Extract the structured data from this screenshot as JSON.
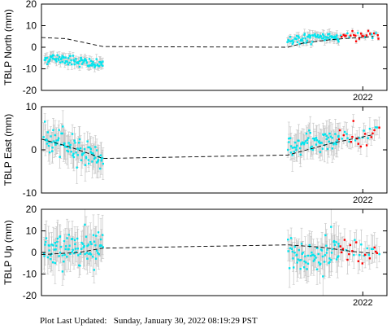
{
  "chart_data": [
    {
      "type": "scatter",
      "ylabel": "TBLP North (mm)",
      "ylim": [
        -20,
        20
      ],
      "yticks": [
        20,
        10,
        0,
        -10,
        -20
      ],
      "xlim": [
        2016.0,
        2022.45
      ],
      "xticks": [
        {
          "value": 2022.0,
          "label": "2022"
        }
      ],
      "grid": false,
      "segments": [
        {
          "x_start": 2016.05,
          "x_end": 2017.15,
          "mean": [
            -5.5,
            -5.0,
            -6.0,
            -7.5,
            -8.5
          ],
          "sd": 1.2,
          "err": 1.8,
          "color": "#00e5ee",
          "n": 90
        },
        {
          "x_start": 2020.6,
          "x_end": 2021.55,
          "mean": [
            3.5,
            3.8,
            4.2,
            4.6,
            5.2
          ],
          "sd": 1.2,
          "err": 1.8,
          "color": "#00e5ee",
          "n": 70
        },
        {
          "x_start": 2021.55,
          "x_end": 2022.3,
          "mean": [
            5.0,
            5.3,
            5.6,
            5.8,
            6.0
          ],
          "sd": 0.8,
          "err": 1.0,
          "color": "#ff0000",
          "n": 28,
          "red_prob": 0.55
        }
      ],
      "model": [
        [
          2016.0,
          4.5
        ],
        [
          2016.45,
          4.0
        ],
        [
          2017.15,
          0.3
        ],
        [
          2020.6,
          0.0
        ],
        [
          2020.9,
          2.0
        ],
        [
          2021.4,
          3.5
        ],
        [
          2022.2,
          5.0
        ]
      ]
    },
    {
      "type": "scatter",
      "ylabel": "TBLP East (mm)",
      "ylim": [
        -10,
        10
      ],
      "yticks": [
        10,
        0,
        -10
      ],
      "xlim": [
        2016.0,
        2022.45
      ],
      "xticks": [
        {
          "value": 2022.0,
          "label": "2022"
        }
      ],
      "grid": false,
      "segments": [
        {
          "x_start": 2016.05,
          "x_end": 2017.15,
          "mean": [
            2.5,
            1.5,
            0.5,
            -0.8,
            -2.0
          ],
          "sd": 1.5,
          "err": 2.8,
          "color": "#00e5ee",
          "n": 90
        },
        {
          "x_start": 2020.6,
          "x_end": 2021.55,
          "mean": [
            0.5,
            1.0,
            1.8,
            2.3,
            2.0
          ],
          "sd": 1.3,
          "err": 2.8,
          "color": "#00e5ee",
          "n": 70
        },
        {
          "x_start": 2021.55,
          "x_end": 2022.3,
          "mean": [
            2.5,
            3.0,
            2.5,
            3.0,
            3.5
          ],
          "sd": 1.2,
          "err": 2.0,
          "color": "#ff0000",
          "n": 28,
          "red_prob": 0.55
        }
      ],
      "model": [
        [
          2016.0,
          2.5
        ],
        [
          2016.5,
          0.8
        ],
        [
          2017.15,
          -2.0
        ],
        [
          2020.6,
          -1.2
        ],
        [
          2021.4,
          1.5
        ],
        [
          2022.2,
          3.5
        ]
      ]
    },
    {
      "type": "scatter",
      "ylabel": "TBLP Up (mm)",
      "ylim": [
        -20,
        20
      ],
      "yticks": [
        20,
        10,
        0,
        -10,
        -20
      ],
      "xlim": [
        2016.0,
        2022.45
      ],
      "xticks": [
        {
          "value": 2022.0,
          "label": "2022"
        }
      ],
      "grid": false,
      "segments": [
        {
          "x_start": 2016.05,
          "x_end": 2017.15,
          "mean": [
            0.0,
            1.5,
            2.5,
            3.5,
            3.0
          ],
          "sd": 4.0,
          "err": 7.0,
          "color": "#00e5ee",
          "n": 90
        },
        {
          "x_start": 2020.6,
          "x_end": 2021.55,
          "mean": [
            2.0,
            -1.0,
            -3.0,
            -1.5,
            0.5
          ],
          "sd": 4.0,
          "err": 7.0,
          "color": "#00e5ee",
          "n": 70
        },
        {
          "x_start": 2021.55,
          "x_end": 2022.3,
          "mean": [
            2.0,
            0.0,
            -3.0,
            -1.0,
            -2.0
          ],
          "sd": 3.0,
          "err": 5.0,
          "color": "#ff0000",
          "n": 28,
          "red_prob": 0.55
        }
      ],
      "model": [
        [
          2016.0,
          -1.0
        ],
        [
          2016.7,
          0.0
        ],
        [
          2017.15,
          2.0
        ],
        [
          2020.6,
          3.5
        ],
        [
          2021.2,
          2.5
        ],
        [
          2021.8,
          0.5
        ],
        [
          2022.2,
          -0.5
        ]
      ]
    }
  ],
  "footer": {
    "label": "Plot Last Updated:",
    "value": "Sunday, January 30, 2022 08:19:29 PST"
  }
}
